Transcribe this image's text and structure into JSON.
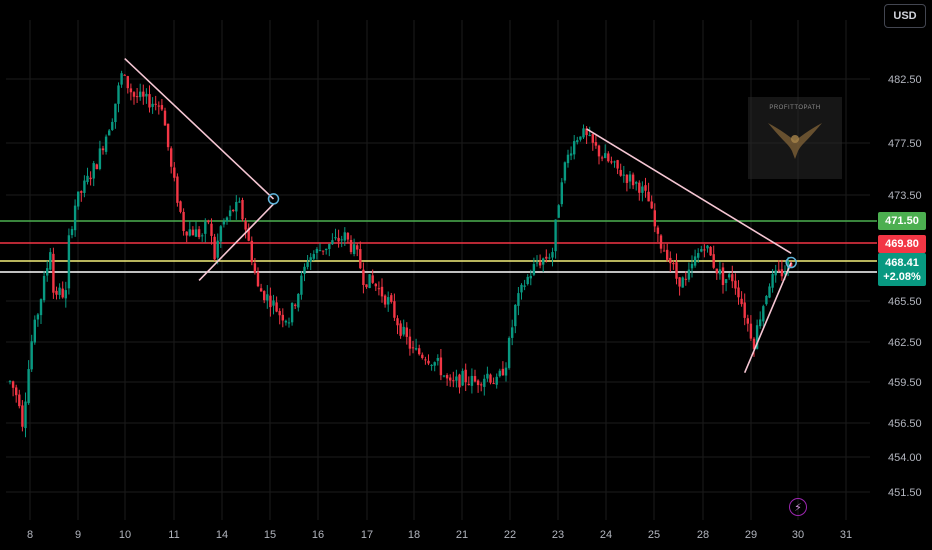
{
  "currency": "USD",
  "watermark": {
    "text": "PROFITTOPATH"
  },
  "price_tags": {
    "resistance": "471.50",
    "red_level": "469.80",
    "last_price": "468.41",
    "change_pct": "+2.08%"
  },
  "colors": {
    "up": "#089981",
    "down": "#f23645",
    "grid": "#1b1b1b",
    "green_line": "#4caf50",
    "red_line": "#f23645",
    "yellow_line": "#f6f07a",
    "white_line": "#ffffff",
    "trend_line": "#f5c6d3"
  },
  "events_icon": "lightning-icon",
  "chart_data": {
    "type": "candlestick",
    "y_ticks": [
      "482.50",
      "477.50",
      "473.50",
      "471.50",
      "469.80",
      "468.41",
      "465.50",
      "462.50",
      "459.50",
      "456.50",
      "454.00",
      "451.50"
    ],
    "x_ticks": [
      "8",
      "9",
      "10",
      "11",
      "14",
      "15",
      "16",
      "17",
      "18",
      "21",
      "22",
      "23",
      "24",
      "25",
      "28",
      "29",
      "30",
      "31"
    ],
    "horizontal_levels": [
      471.5,
      469.8,
      468.41,
      467.5
    ],
    "ylim": [
      450.5,
      485.5
    ],
    "waypoints": [
      [
        0,
        459.5
      ],
      [
        3,
        458.2
      ],
      [
        4,
        456.6
      ],
      [
        7,
        462.5
      ],
      [
        12,
        468.0
      ],
      [
        13,
        469.4
      ],
      [
        14,
        466.2
      ],
      [
        18,
        466.0
      ],
      [
        19,
        470.0
      ],
      [
        21,
        472.8
      ],
      [
        24,
        474.2
      ],
      [
        28,
        476.0
      ],
      [
        33,
        479.6
      ],
      [
        36,
        482.8
      ],
      [
        40,
        481.2
      ],
      [
        44,
        480.8
      ],
      [
        49,
        480.5
      ],
      [
        52,
        475.5
      ],
      [
        56,
        471.0
      ],
      [
        60,
        470.6
      ],
      [
        62,
        470.4
      ],
      [
        64,
        471.5
      ],
      [
        66,
        468.7
      ],
      [
        68,
        471.0
      ],
      [
        72,
        472.4
      ],
      [
        74,
        472.6
      ],
      [
        76,
        471.0
      ],
      [
        80,
        466.4
      ],
      [
        84,
        465.6
      ],
      [
        87,
        464.6
      ],
      [
        90,
        464.2
      ],
      [
        93,
        466.2
      ],
      [
        96,
        468.6
      ],
      [
        100,
        469.3
      ],
      [
        104,
        469.8
      ],
      [
        108,
        470.3
      ],
      [
        112,
        468.8
      ],
      [
        114,
        467.2
      ],
      [
        118,
        466.6
      ],
      [
        122,
        465.5
      ],
      [
        126,
        463.5
      ],
      [
        130,
        461.8
      ],
      [
        134,
        461.5
      ],
      [
        138,
        460.8
      ],
      [
        142,
        459.2
      ],
      [
        146,
        459.8
      ],
      [
        150,
        459.5
      ],
      [
        154,
        460.1
      ],
      [
        157,
        459.4
      ],
      [
        160,
        461.0
      ],
      [
        163,
        465.0
      ],
      [
        166,
        466.8
      ],
      [
        170,
        468.3
      ],
      [
        173,
        468.7
      ],
      [
        175,
        469.2
      ],
      [
        178,
        475.0
      ],
      [
        181,
        477.2
      ],
      [
        184,
        478.4
      ],
      [
        187,
        477.6
      ],
      [
        191,
        476.5
      ],
      [
        195,
        475.6
      ],
      [
        199,
        474.9
      ],
      [
        203,
        474.2
      ],
      [
        206,
        473.0
      ],
      [
        209,
        470.0
      ],
      [
        212,
        469.0
      ],
      [
        215,
        467.2
      ],
      [
        218,
        466.8
      ],
      [
        221,
        468.5
      ],
      [
        224,
        469.8
      ],
      [
        227,
        468.2
      ],
      [
        230,
        467.1
      ],
      [
        233,
        467.2
      ],
      [
        235,
        466.2
      ],
      [
        238,
        463.8
      ],
      [
        240,
        462.5
      ],
      [
        242,
        464.5
      ],
      [
        245,
        466.9
      ],
      [
        248,
        467.4
      ],
      [
        250,
        467.8
      ],
      [
        252,
        468.4
      ]
    ],
    "trend_lines": [
      {
        "from": {
          "bar": 37,
          "price": 484.1
        },
        "to": {
          "bar": 85,
          "price": 473.2
        }
      },
      {
        "from": {
          "bar": 61,
          "price": 467.0
        },
        "to": {
          "bar": 85,
          "price": 472.8
        }
      },
      {
        "from": {
          "bar": 186,
          "price": 478.6
        },
        "to": {
          "bar": 252,
          "price": 469.0
        }
      },
      {
        "from": {
          "bar": 237,
          "price": 460.2
        },
        "to": {
          "bar": 252,
          "price": 468.3
        }
      }
    ],
    "circle_markers": [
      {
        "bar": 85,
        "price": 473.2
      },
      {
        "bar": 252,
        "price": 468.3
      }
    ]
  }
}
